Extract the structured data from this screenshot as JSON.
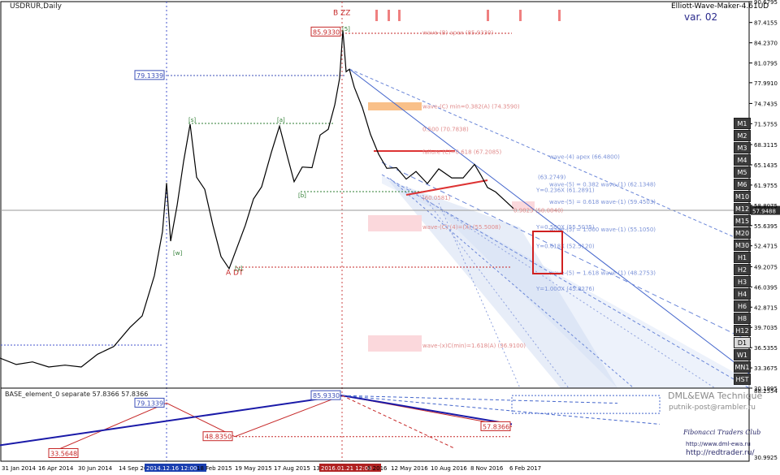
{
  "header": {
    "symbol_label": "USDRUR,Daily",
    "indicator_name": "Elliott-Wave-Maker-4.61UD",
    "version_label": "var. 02"
  },
  "subwindow": {
    "label": "BASE_element_0 separate 57.8366 57.8366",
    "scale_top": "88.2554",
    "scale_bottom": "30.9925"
  },
  "branding": {
    "line1": "DML&EWA Technique",
    "line2": "putnik-post@rambler.ru",
    "club": "Fibonacci Traders Club",
    "url1": "http://www.dml-ewa.ru",
    "url2": "http://redtrader.ru/"
  },
  "timeframes": [
    "M1",
    "M2",
    "M3",
    "M4",
    "M5",
    "M6",
    "M10",
    "M12",
    "M15",
    "M20",
    "M30",
    "H1",
    "H2",
    "H3",
    "H4",
    "H6",
    "H8",
    "H12",
    "D1",
    "W1",
    "MN1",
    "HST"
  ],
  "active_timeframe": "D1",
  "colors": {
    "price_line": "#000000",
    "wave_green": "#2e7d32",
    "wave_red": "#c62828",
    "fib_blue": "#3355cc",
    "channel_fill": "#dfe8f7",
    "pink_zone": "#fbd8dc",
    "orange_zone": "#f9c089",
    "sub_blue": "#1a1aa8"
  },
  "chart_data": [
    {
      "type": "line",
      "title": "USDRUR,Daily",
      "x_tick_labels": [
        "31 Jan 2014",
        "16 Apr 2014",
        "30 Jun 2014",
        "14 Sep 2014",
        "2014.12.16 12:00",
        "18 Feb 2015",
        "19 May 2015",
        "17 Aug 2015",
        "13",
        "2016.01.21 12:00",
        "6 2016",
        "12 May 2016",
        "10 Aug 2016",
        "8 Nov 2016",
        "6 Feb 2017"
      ],
      "y_tick_labels": [
        "90.6795",
        "87.4155",
        "84.2370",
        "81.0795",
        "77.9910",
        "74.7435",
        "71.5755",
        "68.3115",
        "65.1435",
        "61.9755",
        "58.8075",
        "55.6395",
        "52.4715",
        "49.2075",
        "46.0395",
        "42.8715",
        "39.7035",
        "36.5355",
        "33.3675",
        "30.1995"
      ],
      "ylim": [
        30.1995,
        90.6795
      ],
      "current_price": "57.9488",
      "wave_labels": [
        {
          "text": "B ZZ",
          "price": 88.6
        },
        {
          "text": "A DT",
          "price": 47.9
        }
      ],
      "price_flags": [
        {
          "text": "85.9330",
          "price": 85.933
        },
        {
          "text": "79.1339",
          "price": 79.1339
        }
      ],
      "annotations": [
        {
          "text": "wave-(B) apex (85.9330)",
          "price": 85.933
        },
        {
          "text": "wave-(C) min=0.382(A) (74.3590)",
          "price": 74.359
        },
        {
          "text": "0.500 (70.7838)",
          "price": 70.7838
        },
        {
          "text": "failure (C)=0.618 (67.2085)",
          "price": 67.2085
        },
        {
          "text": "wave-(4) apex (66.4800)",
          "price": 66.48
        },
        {
          "text": "(63.2749)",
          "price": 63.2749
        },
        {
          "text": "wave-(5) = 0.382 wave-(1) (62.1348)",
          "price": 62.1348
        },
        {
          "text": "Y=0.236X (61.2891)",
          "price": 61.2891
        },
        {
          "text": "(60.0581)",
          "price": 60.0581
        },
        {
          "text": "wave-(5) = 0.618 wave-(1) (59.4503)",
          "price": 59.4503
        },
        {
          "text": "0.9823 (58.0840)",
          "price": 58.084
        },
        {
          "text": "Y=0.500X (55.5035)",
          "price": 55.5035
        },
        {
          "text": "wave-(5) = 1.000 wave-(1) (55.1050)",
          "price": 55.105
        },
        {
          "text": "wave-(C) (4)=(X) (55.5008)",
          "price": 55.5008
        },
        {
          "text": "Y=0.618X (52.5120)",
          "price": 52.512
        },
        {
          "text": "wave-(5) = 1.618 wave-(1) (48.2753)",
          "price": 48.2753
        },
        {
          "text": "Y=1.000X (45.8276)",
          "price": 45.8276
        },
        {
          "text": "wave-(x)C(min)=1.618(A) (36.9100)",
          "price": 36.91
        }
      ],
      "grid": false
    },
    {
      "type": "line",
      "title": "BASE_element_0 separate 57.8366 57.8366",
      "series": [
        {
          "name": "BASE_element_0",
          "values": [
            33.5648,
            79.1339,
            48.835,
            85.933,
            57.8366
          ]
        }
      ],
      "value_flags": [
        "79.1339",
        "85.9330",
        "48.8350",
        "57.8366",
        "33.5648"
      ],
      "ylim": [
        30.9925,
        88.2554
      ]
    }
  ]
}
